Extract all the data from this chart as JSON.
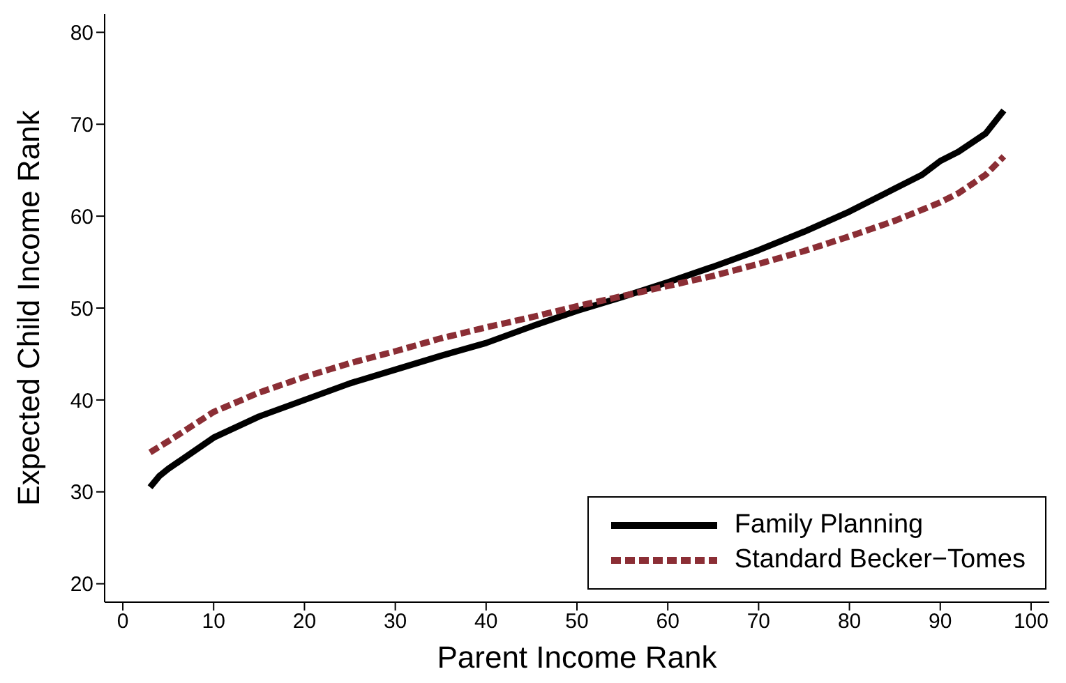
{
  "chart_data": {
    "type": "line",
    "xlabel": "Parent Income Rank",
    "ylabel": "Expected Child Income Rank",
    "xlim": [
      -2,
      102
    ],
    "xticks": [
      0,
      10,
      20,
      30,
      40,
      50,
      60,
      70,
      80,
      90,
      100
    ],
    "ylim": [
      18,
      82
    ],
    "yticks": [
      20,
      30,
      40,
      50,
      60,
      70,
      80
    ],
    "grid": false,
    "legend": "bottom right",
    "marker": "none",
    "series": [
      {
        "name": "Family Planning",
        "color": "#000000",
        "line_style": "solid",
        "x": [
          3,
          4,
          5,
          10,
          15,
          20,
          25,
          30,
          35,
          40,
          45,
          50,
          55,
          60,
          65,
          70,
          75,
          80,
          85,
          88,
          90,
          92,
          95,
          97
        ],
        "values": [
          30.5,
          31.7,
          32.5,
          35.9,
          38.2,
          40,
          41.8,
          43.3,
          44.8,
          46.2,
          48,
          49.7,
          51.2,
          52.8,
          54.5,
          56.3,
          58.3,
          60.5,
          63,
          64.5,
          66,
          67,
          69,
          71.5
        ]
      },
      {
        "name": "Standard Becker−Tomes",
        "color": "#8b2e35",
        "line_style": "dashed",
        "x": [
          3,
          5,
          10,
          15,
          20,
          25,
          30,
          35,
          40,
          45,
          50,
          55,
          60,
          65,
          70,
          75,
          80,
          85,
          90,
          92,
          95,
          97
        ],
        "values": [
          34.3,
          35.5,
          38.7,
          40.8,
          42.5,
          44,
          45.3,
          46.7,
          47.9,
          49,
          50.2,
          51.3,
          52.4,
          53.5,
          54.8,
          56.2,
          57.8,
          59.5,
          61.5,
          62.5,
          64.5,
          66.5
        ]
      }
    ]
  }
}
